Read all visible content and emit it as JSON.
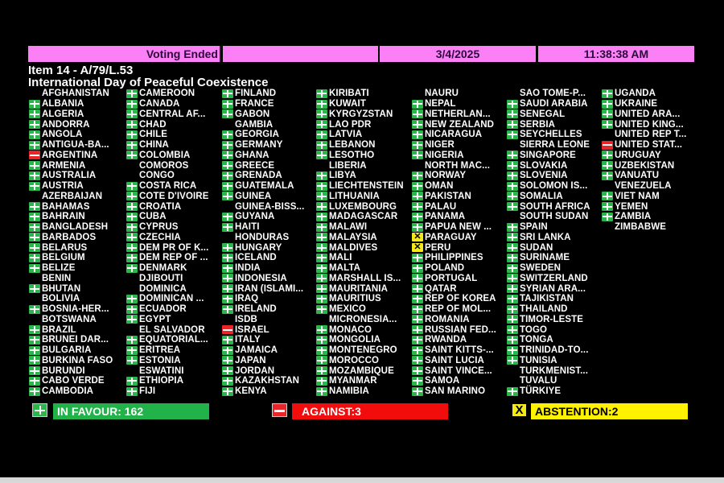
{
  "header": {
    "status": "Voting Ended",
    "date": "3/4/2025",
    "time": "11:38:38 AM"
  },
  "item": {
    "number": "Item 14 - A/79/L.53",
    "title": "International Day of Peaceful Coexistence"
  },
  "vote_colors": {
    "Y": "#2bb54a",
    "N": "#e8262a",
    "A": "#f4e91a"
  },
  "columns": [
    [
      [
        "AFGHANISTAN",
        ""
      ],
      [
        "ALBANIA",
        "Y"
      ],
      [
        "ALGERIA",
        "Y"
      ],
      [
        "ANDORRA",
        "Y"
      ],
      [
        "ANGOLA",
        "Y"
      ],
      [
        "ANTIGUA-BA...",
        "Y"
      ],
      [
        "ARGENTINA",
        "N"
      ],
      [
        "ARMENIA",
        "Y"
      ],
      [
        "AUSTRALIA",
        "Y"
      ],
      [
        "AUSTRIA",
        "Y"
      ],
      [
        "AZERBAIJAN",
        ""
      ],
      [
        "BAHAMAS",
        "Y"
      ],
      [
        "BAHRAIN",
        "Y"
      ],
      [
        "BANGLADESH",
        "Y"
      ],
      [
        "BARBADOS",
        "Y"
      ],
      [
        "BELARUS",
        "Y"
      ],
      [
        "BELGIUM",
        "Y"
      ],
      [
        "BELIZE",
        "Y"
      ],
      [
        "BENIN",
        ""
      ],
      [
        "BHUTAN",
        "Y"
      ],
      [
        "BOLIVIA",
        ""
      ],
      [
        "BOSNIA-HER...",
        "Y"
      ],
      [
        "BOTSWANA",
        ""
      ],
      [
        "BRAZIL",
        "Y"
      ],
      [
        "BRUNEI DAR...",
        "Y"
      ],
      [
        "BULGARIA",
        "Y"
      ],
      [
        "BURKINA FASO",
        "Y"
      ],
      [
        "BURUNDI",
        "Y"
      ],
      [
        "CABO VERDE",
        "Y"
      ],
      [
        "CAMBODIA",
        "Y"
      ]
    ],
    [
      [
        "CAMEROON",
        "Y"
      ],
      [
        "CANADA",
        "Y"
      ],
      [
        "CENTRAL AF...",
        "Y"
      ],
      [
        "CHAD",
        "Y"
      ],
      [
        "CHILE",
        "Y"
      ],
      [
        "CHINA",
        "Y"
      ],
      [
        "COLOMBIA",
        "Y"
      ],
      [
        "COMOROS",
        ""
      ],
      [
        "CONGO",
        ""
      ],
      [
        "COSTA RICA",
        "Y"
      ],
      [
        "COTE D'IVOIRE",
        "Y"
      ],
      [
        "CROATIA",
        "Y"
      ],
      [
        "CUBA",
        "Y"
      ],
      [
        "CYPRUS",
        "Y"
      ],
      [
        "CZECHIA",
        "Y"
      ],
      [
        "DEM PR OF K...",
        "Y"
      ],
      [
        "DEM REP OF ...",
        "Y"
      ],
      [
        "DENMARK",
        "Y"
      ],
      [
        "DJIBOUTI",
        ""
      ],
      [
        "DOMINICA",
        ""
      ],
      [
        "DOMINICAN ...",
        "Y"
      ],
      [
        "ECUADOR",
        "Y"
      ],
      [
        "EGYPT",
        "Y"
      ],
      [
        "EL SALVADOR",
        ""
      ],
      [
        "EQUATORIAL...",
        "Y"
      ],
      [
        "ERITREA",
        "Y"
      ],
      [
        "ESTONIA",
        "Y"
      ],
      [
        "ESWATINI",
        ""
      ],
      [
        "ETHIOPIA",
        "Y"
      ],
      [
        "FIJI",
        "Y"
      ]
    ],
    [
      [
        "FINLAND",
        "Y"
      ],
      [
        "FRANCE",
        "Y"
      ],
      [
        "GABON",
        "Y"
      ],
      [
        "GAMBIA",
        ""
      ],
      [
        "GEORGIA",
        "Y"
      ],
      [
        "GERMANY",
        "Y"
      ],
      [
        "GHANA",
        "Y"
      ],
      [
        "GREECE",
        "Y"
      ],
      [
        "GRENADA",
        "Y"
      ],
      [
        "GUATEMALA",
        "Y"
      ],
      [
        "GUINEA",
        "Y"
      ],
      [
        "GUINEA-BISS...",
        ""
      ],
      [
        "GUYANA",
        "Y"
      ],
      [
        "HAITI",
        "Y"
      ],
      [
        "HONDURAS",
        ""
      ],
      [
        "HUNGARY",
        "Y"
      ],
      [
        "ICELAND",
        "Y"
      ],
      [
        "INDIA",
        "Y"
      ],
      [
        "INDONESIA",
        "Y"
      ],
      [
        "IRAN (ISLAMI...",
        "Y"
      ],
      [
        "IRAQ",
        "Y"
      ],
      [
        "IRELAND",
        "Y"
      ],
      [
        "ISDB",
        ""
      ],
      [
        "ISRAEL",
        "N"
      ],
      [
        "ITALY",
        "Y"
      ],
      [
        "JAMAICA",
        "Y"
      ],
      [
        "JAPAN",
        "Y"
      ],
      [
        "JORDAN",
        "Y"
      ],
      [
        "KAZAKHSTAN",
        "Y"
      ],
      [
        "KENYA",
        "Y"
      ]
    ],
    [
      [
        "KIRIBATI",
        "Y"
      ],
      [
        "KUWAIT",
        "Y"
      ],
      [
        "KYRGYZSTAN",
        "Y"
      ],
      [
        "LAO PDR",
        "Y"
      ],
      [
        "LATVIA",
        "Y"
      ],
      [
        "LEBANON",
        "Y"
      ],
      [
        "LESOTHO",
        "Y"
      ],
      [
        "LIBERIA",
        ""
      ],
      [
        "LIBYA",
        "Y"
      ],
      [
        "LIECHTENSTEIN",
        "Y"
      ],
      [
        "LITHUANIA",
        "Y"
      ],
      [
        "LUXEMBOURG",
        "Y"
      ],
      [
        "MADAGASCAR",
        "Y"
      ],
      [
        "MALAWI",
        "Y"
      ],
      [
        "MALAYSIA",
        "Y"
      ],
      [
        "MALDIVES",
        "Y"
      ],
      [
        "MALI",
        "Y"
      ],
      [
        "MALTA",
        "Y"
      ],
      [
        "MARSHALL IS...",
        "Y"
      ],
      [
        "MAURITANIA",
        "Y"
      ],
      [
        "MAURITIUS",
        "Y"
      ],
      [
        "MEXICO",
        "Y"
      ],
      [
        "MICRONESIA...",
        ""
      ],
      [
        "MONACO",
        "Y"
      ],
      [
        "MONGOLIA",
        "Y"
      ],
      [
        "MONTENEGRO",
        "Y"
      ],
      [
        "MOROCCO",
        "Y"
      ],
      [
        "MOZAMBIQUE",
        "Y"
      ],
      [
        "MYANMAR",
        "Y"
      ],
      [
        "NAMIBIA",
        "Y"
      ]
    ],
    [
      [
        "NAURU",
        ""
      ],
      [
        "NEPAL",
        "Y"
      ],
      [
        "NETHERLAN...",
        "Y"
      ],
      [
        "NEW ZEALAND",
        "Y"
      ],
      [
        "NICARAGUA",
        "Y"
      ],
      [
        "NIGER",
        "Y"
      ],
      [
        "NIGERIA",
        "Y"
      ],
      [
        "NORTH MAC...",
        ""
      ],
      [
        "NORWAY",
        "Y"
      ],
      [
        "OMAN",
        "Y"
      ],
      [
        "PAKISTAN",
        "Y"
      ],
      [
        "PALAU",
        "Y"
      ],
      [
        "PANAMA",
        "Y"
      ],
      [
        "PAPUA NEW ...",
        "Y"
      ],
      [
        "PARAGUAY",
        "A"
      ],
      [
        "PERU",
        "A"
      ],
      [
        "PHILIPPINES",
        "Y"
      ],
      [
        "POLAND",
        "Y"
      ],
      [
        "PORTUGAL",
        "Y"
      ],
      [
        "QATAR",
        "Y"
      ],
      [
        "REP OF KOREA",
        "Y"
      ],
      [
        "REP OF MOL...",
        "Y"
      ],
      [
        "ROMANIA",
        "Y"
      ],
      [
        "RUSSIAN FED...",
        "Y"
      ],
      [
        "RWANDA",
        "Y"
      ],
      [
        "SAINT KITTS-...",
        "Y"
      ],
      [
        "SAINT LUCIA",
        "Y"
      ],
      [
        "SAINT VINCE...",
        "Y"
      ],
      [
        "SAMOA",
        "Y"
      ],
      [
        "SAN MARINO",
        "Y"
      ]
    ],
    [
      [
        "SAO TOME-P...",
        ""
      ],
      [
        "SAUDI ARABIA",
        "Y"
      ],
      [
        "SENEGAL",
        "Y"
      ],
      [
        "SERBIA",
        "Y"
      ],
      [
        "SEYCHELLES",
        "Y"
      ],
      [
        "SIERRA LEONE",
        ""
      ],
      [
        "SINGAPORE",
        "Y"
      ],
      [
        "SLOVAKIA",
        "Y"
      ],
      [
        "SLOVENIA",
        "Y"
      ],
      [
        "SOLOMON IS...",
        "Y"
      ],
      [
        "SOMALIA",
        "Y"
      ],
      [
        "SOUTH AFRICA",
        "Y"
      ],
      [
        "SOUTH SUDAN",
        ""
      ],
      [
        "SPAIN",
        "Y"
      ],
      [
        "SRI LANKA",
        "Y"
      ],
      [
        "SUDAN",
        "Y"
      ],
      [
        "SURINAME",
        "Y"
      ],
      [
        "SWEDEN",
        "Y"
      ],
      [
        "SWITZERLAND",
        "Y"
      ],
      [
        "SYRIAN ARA...",
        "Y"
      ],
      [
        "TAJIKISTAN",
        "Y"
      ],
      [
        "THAILAND",
        "Y"
      ],
      [
        "TIMOR-LESTE",
        "Y"
      ],
      [
        "TOGO",
        "Y"
      ],
      [
        "TONGA",
        "Y"
      ],
      [
        "TRINIDAD-TO...",
        "Y"
      ],
      [
        "TUNISIA",
        "Y"
      ],
      [
        "TURKMENIST...",
        ""
      ],
      [
        "TUVALU",
        ""
      ],
      [
        "TÜRKIYE",
        "Y"
      ]
    ],
    [
      [
        "UGANDA",
        "Y"
      ],
      [
        "UKRAINE",
        "Y"
      ],
      [
        "UNITED ARA...",
        "Y"
      ],
      [
        "UNITED KING...",
        "Y"
      ],
      [
        "UNITED REP T...",
        ""
      ],
      [
        "UNITED STAT...",
        "N"
      ],
      [
        "URUGUAY",
        "Y"
      ],
      [
        "UZBEKISTAN",
        "Y"
      ],
      [
        "VANUATU",
        "Y"
      ],
      [
        "VENEZUELA",
        ""
      ],
      [
        "VIET NAM",
        "Y"
      ],
      [
        "YEMEN",
        "Y"
      ],
      [
        "ZAMBIA",
        "Y"
      ],
      [
        "ZIMBABWE",
        ""
      ]
    ]
  ],
  "totals": {
    "in_favour": "IN FAVOUR: 162",
    "against": "AGAINST:3",
    "abstention": "ABSTENTION:2"
  }
}
